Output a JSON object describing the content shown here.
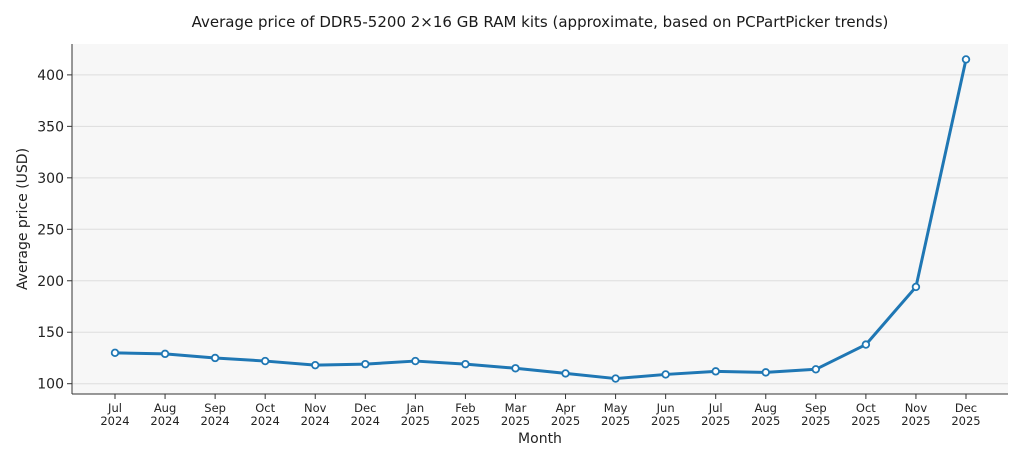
{
  "chart_data": {
    "type": "line",
    "title": "Average price of DDR5-5200 2×16 GB RAM kits (approximate, based on PCPartPicker trends)",
    "xlabel": "Month",
    "ylabel": "Average price (USD)",
    "ylim": [
      90,
      430
    ],
    "yticks": [
      100,
      150,
      200,
      250,
      300,
      350,
      400
    ],
    "grid": "horizontal",
    "colors": {
      "line": "#1f77b4",
      "plot_bg": "#f7f7f7",
      "marker_fill": "#ffffff"
    },
    "categories": [
      [
        "Jul",
        "2024"
      ],
      [
        "Aug",
        "2024"
      ],
      [
        "Sep",
        "2024"
      ],
      [
        "Oct",
        "2024"
      ],
      [
        "Nov",
        "2024"
      ],
      [
        "Dec",
        "2024"
      ],
      [
        "Jan",
        "2025"
      ],
      [
        "Feb",
        "2025"
      ],
      [
        "Mar",
        "2025"
      ],
      [
        "Apr",
        "2025"
      ],
      [
        "May",
        "2025"
      ],
      [
        "Jun",
        "2025"
      ],
      [
        "Jul",
        "2025"
      ],
      [
        "Aug",
        "2025"
      ],
      [
        "Sep",
        "2025"
      ],
      [
        "Oct",
        "2025"
      ],
      [
        "Nov",
        "2025"
      ],
      [
        "Dec",
        "2025"
      ]
    ],
    "series": [
      {
        "values": [
          130,
          129,
          125,
          122,
          118,
          119,
          122,
          119,
          115,
          110,
          105,
          109,
          112,
          111,
          114,
          138,
          194,
          415
        ]
      }
    ]
  }
}
